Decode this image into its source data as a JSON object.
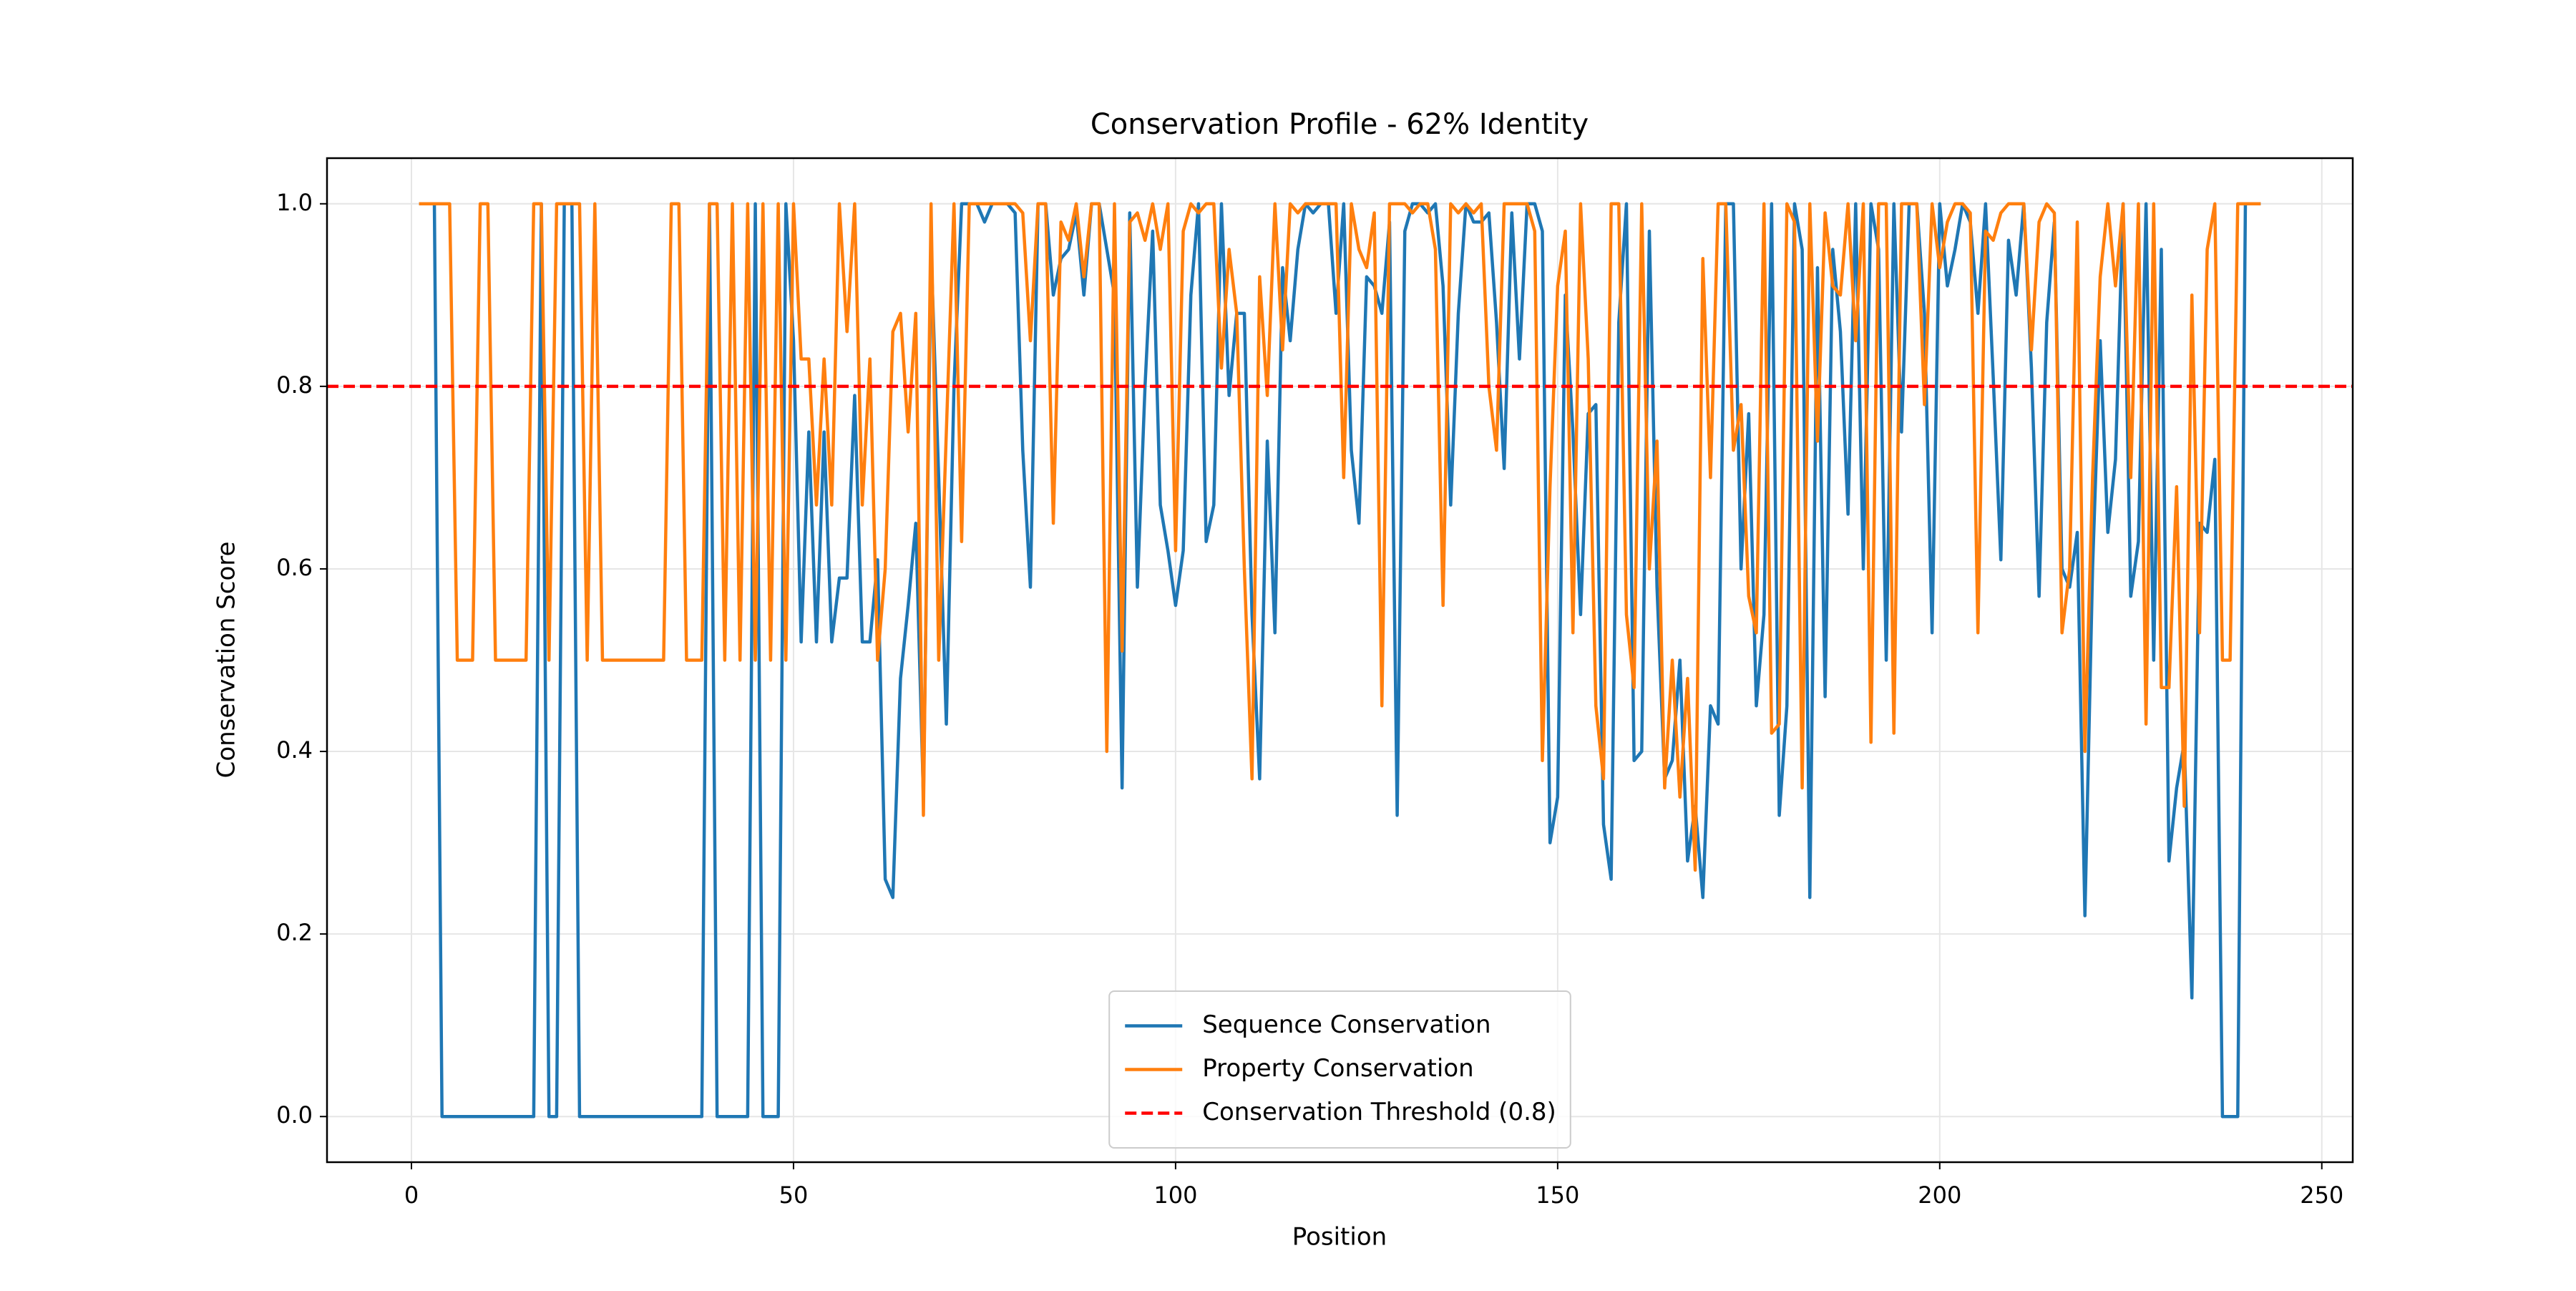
{
  "chart_data": {
    "type": "line",
    "title": "Conservation Profile - 62% Identity",
    "xlabel": "Position",
    "ylabel": "Conservation Score",
    "x": [
      1,
      2,
      3,
      4,
      5,
      6,
      7,
      8,
      9,
      10,
      11,
      12,
      13,
      14,
      15,
      16,
      17,
      18,
      19,
      20,
      21,
      22,
      23,
      24,
      25,
      26,
      27,
      28,
      29,
      30,
      31,
      32,
      33,
      34,
      35,
      36,
      37,
      38,
      39,
      40,
      41,
      42,
      43,
      44,
      45,
      46,
      47,
      48,
      49,
      50,
      51,
      52,
      53,
      54,
      55,
      56,
      57,
      58,
      59,
      60,
      61,
      62,
      63,
      64,
      65,
      66,
      67,
      68,
      69,
      70,
      71,
      72,
      73,
      74,
      75,
      76,
      77,
      78,
      79,
      80,
      81,
      82,
      83,
      84,
      85,
      86,
      87,
      88,
      89,
      90,
      91,
      92,
      93,
      94,
      95,
      96,
      97,
      98,
      99,
      100,
      101,
      102,
      103,
      104,
      105,
      106,
      107,
      108,
      109,
      110,
      111,
      112,
      113,
      114,
      115,
      116,
      117,
      118,
      119,
      120,
      121,
      122,
      123,
      124,
      125,
      126,
      127,
      128,
      129,
      130,
      131,
      132,
      133,
      134,
      135,
      136,
      137,
      138,
      139,
      140,
      141,
      142,
      143,
      144,
      145,
      146,
      147,
      148,
      149,
      150,
      151,
      152,
      153,
      154,
      155,
      156,
      157,
      158,
      159,
      160,
      161,
      162,
      163,
      164,
      165,
      166,
      167,
      168,
      169,
      170,
      171,
      172,
      173,
      174,
      175,
      176,
      177,
      178,
      179,
      180,
      181,
      182,
      183,
      184,
      185,
      186,
      187,
      188,
      189,
      190,
      191,
      192,
      193,
      194,
      195,
      196,
      197,
      198,
      199,
      200,
      201,
      202,
      203,
      204,
      205,
      206,
      207,
      208,
      209,
      210,
      211,
      212,
      213,
      214,
      215,
      216,
      217,
      218,
      219,
      220,
      221,
      222,
      223,
      224,
      225,
      226,
      227,
      228,
      229,
      230,
      231,
      232,
      233,
      234,
      235,
      236,
      237,
      238,
      239,
      240,
      241,
      242
    ],
    "series": [
      {
        "name": "Sequence Conservation",
        "color": "#1f77b4",
        "values": [
          1,
          1,
          1,
          0,
          0,
          0,
          0,
          0,
          0,
          0,
          0,
          0,
          0,
          0,
          0,
          0,
          1,
          0,
          0,
          1,
          1,
          0,
          0,
          0,
          0,
          0,
          0,
          0,
          0,
          0,
          0,
          0,
          0,
          0,
          0,
          0,
          0,
          0,
          1,
          0,
          0,
          0,
          0,
          0,
          1,
          0,
          0,
          0,
          1,
          0.85,
          0.52,
          0.75,
          0.52,
          0.75,
          0.52,
          0.59,
          0.59,
          0.79,
          0.52,
          0.52,
          0.61,
          0.26,
          0.24,
          0.48,
          0.56,
          0.65,
          0.35,
          0.95,
          0.7,
          0.43,
          0.8,
          1,
          1,
          1,
          0.98,
          1,
          1,
          1,
          0.99,
          0.73,
          0.58,
          1,
          1,
          0.9,
          0.94,
          0.95,
          0.99,
          0.9,
          1,
          1,
          0.95,
          0.9,
          0.36,
          0.99,
          0.58,
          0.8,
          0.97,
          0.67,
          0.62,
          0.56,
          0.62,
          0.9,
          1,
          0.63,
          0.67,
          1,
          0.79,
          0.88,
          0.88,
          0.55,
          0.37,
          0.74,
          0.53,
          0.93,
          0.85,
          0.95,
          1,
          0.99,
          1,
          1,
          0.88,
          1,
          0.73,
          0.65,
          0.92,
          0.91,
          0.88,
          0.98,
          0.33,
          0.97,
          1,
          1,
          0.99,
          1,
          0.91,
          0.67,
          0.88,
          1,
          0.98,
          0.98,
          0.99,
          0.87,
          0.71,
          0.99,
          0.83,
          1,
          1,
          0.97,
          0.3,
          0.35,
          0.9,
          0.75,
          0.55,
          0.77,
          0.78,
          0.32,
          0.26,
          0.87,
          1,
          0.39,
          0.4,
          0.97,
          0.58,
          0.37,
          0.39,
          0.5,
          0.28,
          0.34,
          0.24,
          0.45,
          0.43,
          1,
          1,
          0.6,
          0.77,
          0.45,
          0.55,
          1,
          0.33,
          0.45,
          1,
          0.95,
          0.24,
          0.93,
          0.46,
          0.95,
          0.86,
          0.66,
          1,
          0.6,
          1,
          0.95,
          0.5,
          1,
          0.75,
          1,
          1,
          0.88,
          0.53,
          1,
          0.91,
          0.95,
          1,
          0.98,
          0.88,
          1,
          0.81,
          0.61,
          0.96,
          0.9,
          1,
          0.82,
          0.57,
          0.87,
          0.98,
          0.6,
          0.58,
          0.64,
          0.22,
          0.6,
          0.85,
          0.64,
          0.72,
          1,
          0.57,
          0.63,
          1,
          0.5,
          0.95,
          0.28,
          0.36,
          0.41,
          0.13,
          0.65,
          0.64,
          0.72,
          0,
          0,
          0,
          1,
          1,
          1
        ]
      },
      {
        "name": "Property Conservation",
        "color": "#ff7f0e",
        "values": [
          1,
          1,
          1,
          1,
          1,
          0.5,
          0.5,
          0.5,
          1,
          1,
          0.5,
          0.5,
          0.5,
          0.5,
          0.5,
          1,
          1,
          0.5,
          1,
          1,
          1,
          1,
          0.5,
          1,
          0.5,
          0.5,
          0.5,
          0.5,
          0.5,
          0.5,
          0.5,
          0.5,
          0.5,
          1,
          1,
          0.5,
          0.5,
          0.5,
          1,
          1,
          0.5,
          1,
          0.5,
          1,
          0.5,
          1,
          0.5,
          1,
          0.5,
          1,
          0.83,
          0.83,
          0.67,
          0.83,
          0.67,
          1,
          0.86,
          1,
          0.67,
          0.83,
          0.5,
          0.6,
          0.86,
          0.88,
          0.75,
          0.88,
          0.33,
          1,
          0.5,
          0.75,
          1,
          0.63,
          1,
          1,
          1,
          1,
          1,
          1,
          1,
          0.99,
          0.85,
          1,
          1,
          0.65,
          0.98,
          0.96,
          1,
          0.92,
          1,
          1,
          0.4,
          1,
          0.51,
          0.98,
          0.99,
          0.96,
          1,
          0.95,
          1,
          0.62,
          0.97,
          1,
          0.99,
          1,
          1,
          0.82,
          0.95,
          0.88,
          0.6,
          0.37,
          0.92,
          0.79,
          1,
          0.84,
          1,
          0.99,
          1,
          1,
          1,
          1,
          1,
          0.7,
          1,
          0.95,
          0.93,
          0.99,
          0.45,
          1,
          1,
          1,
          0.99,
          1,
          1,
          0.95,
          0.56,
          1,
          0.99,
          1,
          0.99,
          1,
          0.8,
          0.73,
          1,
          1,
          1,
          1,
          0.97,
          0.39,
          0.69,
          0.91,
          0.97,
          0.53,
          1,
          0.83,
          0.45,
          0.37,
          1,
          1,
          0.55,
          0.47,
          1,
          0.6,
          0.74,
          0.36,
          0.5,
          0.35,
          0.48,
          0.27,
          0.94,
          0.7,
          1,
          1,
          0.73,
          0.78,
          0.57,
          0.53,
          1,
          0.42,
          0.43,
          1,
          0.98,
          0.36,
          1,
          0.74,
          0.99,
          0.91,
          0.9,
          1,
          0.85,
          1,
          0.41,
          1,
          1,
          0.42,
          1,
          1,
          1,
          0.78,
          1,
          0.93,
          0.98,
          1,
          1,
          0.99,
          0.53,
          0.97,
          0.96,
          0.99,
          1,
          1,
          1,
          0.84,
          0.98,
          1,
          0.99,
          0.53,
          0.6,
          0.98,
          0.4,
          0.7,
          0.92,
          1,
          0.91,
          1,
          0.7,
          1,
          0.43,
          1,
          0.47,
          0.47,
          0.69,
          0.34,
          0.9,
          0.53,
          0.95,
          1,
          0.5,
          0.5,
          1,
          1,
          1,
          1
        ]
      }
    ],
    "reference_lines": [
      {
        "name": "Conservation Threshold (0.8)",
        "value": 0.8,
        "color": "#ff0000",
        "style": "dashed"
      }
    ],
    "xlim": [
      -11.05,
      254.05
    ],
    "ylim": [
      -0.05,
      1.05
    ],
    "xticks": [
      0,
      50,
      100,
      150,
      200,
      250
    ],
    "yticks": [
      {
        "value": 0,
        "label": "0.0"
      },
      0.2,
      0.4,
      0.6,
      0.8,
      {
        "value": 1,
        "label": "1.0"
      }
    ],
    "grid": true,
    "legend": "lower center"
  }
}
